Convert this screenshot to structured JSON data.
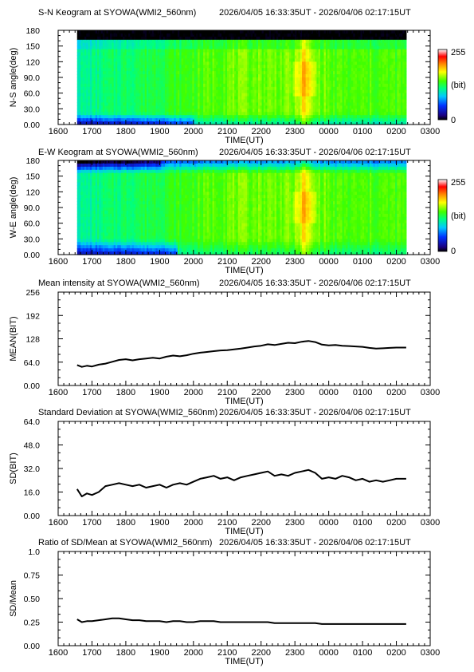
{
  "page": {
    "background": "#ffffff"
  },
  "chart_data": [
    {
      "type": "heatmap",
      "title": "S-N Keogram at SYOWA(WMI2_560nm)",
      "time_range": "2026/04/05 16:33:35UT - 2026/04/06 02:17:15UT",
      "xlabel": "TIME(UT)",
      "ylabel": "N-S angle(deg)",
      "x_ticks": [
        "1600",
        "1700",
        "1800",
        "1900",
        "2000",
        "2100",
        "2200",
        "2300",
        "0000",
        "0100",
        "0200",
        "0300"
      ],
      "y_ticks": [
        "0.00",
        "30.0",
        "60.0",
        "90.0",
        "120",
        "150",
        "180"
      ],
      "xlim_hours": [
        16.0,
        27.0
      ],
      "data_x_range_hours": [
        16.56,
        26.29
      ],
      "ylim": [
        0,
        180
      ],
      "colorbar": {
        "min_label": "0",
        "max_label": "255",
        "unit_label": "(bit)"
      },
      "description_profile": {
        "x_hours": [
          16.56,
          17.0,
          17.5,
          18.0,
          18.5,
          19.0,
          19.5,
          20.0,
          20.5,
          21.0,
          21.5,
          22.0,
          22.5,
          23.0,
          23.3,
          23.5,
          24.0,
          24.5,
          25.0,
          25.5,
          26.0,
          26.29
        ],
        "mean_level": [
          60,
          70,
          80,
          88,
          95,
          100,
          105,
          115,
          122,
          128,
          130,
          135,
          140,
          145,
          160,
          140,
          130,
          130,
          128,
          125,
          126,
          126
        ]
      }
    },
    {
      "type": "heatmap",
      "title": "E-W Keogram at SYOWA(WMI2_560nm)",
      "time_range": "2026/04/05 16:33:35UT - 2026/04/06 02:17:15UT",
      "xlabel": "TIME(UT)",
      "ylabel": "W-E angle(deg)",
      "x_ticks": [
        "1600",
        "1700",
        "1800",
        "1900",
        "2000",
        "2100",
        "2200",
        "2300",
        "0000",
        "0100",
        "0200",
        "0300"
      ],
      "y_ticks": [
        "0.00",
        "30.0",
        "60.0",
        "90.0",
        "120",
        "150",
        "180"
      ],
      "xlim_hours": [
        16.0,
        27.0
      ],
      "data_x_range_hours": [
        16.56,
        26.29
      ],
      "ylim": [
        0,
        180
      ],
      "colorbar": {
        "min_label": "0",
        "max_label": "255",
        "unit_label": "(bit)"
      }
    },
    {
      "type": "line",
      "title": "Mean intensity at SYOWA(WMI2_560nm)",
      "time_range": "2026/04/05 16:33:35UT - 2026/04/06 02:17:15UT",
      "xlabel": "TIME(UT)",
      "ylabel": "MEAN(BIT)",
      "x_ticks": [
        "1600",
        "1700",
        "1800",
        "1900",
        "2000",
        "2100",
        "2200",
        "2300",
        "0000",
        "0100",
        "0200",
        "0300"
      ],
      "y_ticks": [
        "0.00",
        "64.0",
        "128",
        "192",
        "256"
      ],
      "xlim_hours": [
        16.0,
        27.0
      ],
      "ylim": [
        0,
        256
      ],
      "series": [
        {
          "x_hours": [
            16.56,
            16.7,
            16.85,
            17.0,
            17.2,
            17.4,
            17.6,
            17.8,
            18.0,
            18.2,
            18.4,
            18.6,
            18.8,
            19.0,
            19.2,
            19.4,
            19.6,
            19.8,
            20.0,
            20.2,
            20.4,
            20.6,
            20.8,
            21.0,
            21.2,
            21.4,
            21.6,
            21.8,
            22.0,
            22.2,
            22.4,
            22.6,
            22.8,
            23.0,
            23.2,
            23.4,
            23.6,
            23.8,
            24.0,
            24.2,
            24.4,
            24.6,
            24.8,
            25.0,
            25.2,
            25.4,
            25.6,
            25.8,
            26.0,
            26.29
          ],
          "values": [
            56,
            51,
            54,
            52,
            57,
            60,
            65,
            70,
            72,
            69,
            72,
            74,
            76,
            74,
            79,
            82,
            80,
            83,
            87,
            90,
            92,
            94,
            96,
            97,
            99,
            101,
            104,
            107,
            109,
            113,
            111,
            114,
            117,
            116,
            120,
            122,
            119,
            112,
            110,
            111,
            109,
            108,
            107,
            106,
            103,
            101,
            102,
            103,
            104,
            104
          ]
        }
      ]
    },
    {
      "type": "line",
      "title": "Standard Deviation at SYOWA(WMI2_560nm)",
      "time_range": "2026/04/05 16:33:35UT - 2026/04/06 02:17:15UT",
      "xlabel": "TIME(UT)",
      "ylabel": "SD(BIT)",
      "x_ticks": [
        "1600",
        "1700",
        "1800",
        "1900",
        "2000",
        "2100",
        "2200",
        "2300",
        "0000",
        "0100",
        "0200",
        "0300"
      ],
      "y_ticks": [
        "0.00",
        "16.0",
        "32.0",
        "48.0",
        "64.0"
      ],
      "xlim_hours": [
        16.0,
        27.0
      ],
      "ylim": [
        0,
        64
      ],
      "series": [
        {
          "x_hours": [
            16.56,
            16.7,
            16.85,
            17.0,
            17.2,
            17.4,
            17.6,
            17.8,
            18.0,
            18.2,
            18.4,
            18.6,
            18.8,
            19.0,
            19.2,
            19.4,
            19.6,
            19.8,
            20.0,
            20.2,
            20.4,
            20.6,
            20.8,
            21.0,
            21.2,
            21.4,
            21.6,
            21.8,
            22.0,
            22.2,
            22.4,
            22.6,
            22.8,
            23.0,
            23.2,
            23.4,
            23.6,
            23.8,
            24.0,
            24.2,
            24.4,
            24.6,
            24.8,
            25.0,
            25.2,
            25.4,
            25.6,
            25.8,
            26.0,
            26.29
          ],
          "values": [
            18,
            13,
            15,
            14,
            16,
            20,
            21,
            22,
            21,
            20,
            21,
            19,
            20,
            21,
            19,
            21,
            22,
            21,
            23,
            25,
            26,
            27,
            25,
            26,
            24,
            26,
            27,
            28,
            29,
            30,
            27,
            28,
            27,
            29,
            30,
            31,
            29,
            25,
            26,
            25,
            27,
            26,
            24,
            25,
            23,
            24,
            23,
            24,
            25,
            25
          ]
        }
      ]
    },
    {
      "type": "line",
      "title": "Ratio of SD/Mean at SYOWA(WMI2_560nm)",
      "time_range": "2026/04/05 16:33:35UT - 2026/04/06 02:17:15UT",
      "xlabel": "TIME(UT)",
      "ylabel": "SD/Mean",
      "x_ticks": [
        "1600",
        "1700",
        "1800",
        "1900",
        "2000",
        "2100",
        "2200",
        "2300",
        "0000",
        "0100",
        "0200",
        "0300"
      ],
      "y_ticks": [
        "0.00",
        "0.25",
        "0.50",
        "0.75",
        "1.0"
      ],
      "xlim_hours": [
        16.0,
        27.0
      ],
      "ylim": [
        0,
        1.0
      ],
      "series": [
        {
          "x_hours": [
            16.56,
            16.7,
            16.85,
            17.0,
            17.2,
            17.4,
            17.6,
            17.8,
            18.0,
            18.2,
            18.4,
            18.6,
            18.8,
            19.0,
            19.2,
            19.4,
            19.6,
            19.8,
            20.0,
            20.2,
            20.4,
            20.6,
            20.8,
            21.0,
            21.2,
            21.4,
            21.6,
            21.8,
            22.0,
            22.2,
            22.4,
            22.6,
            22.8,
            23.0,
            23.2,
            23.4,
            23.6,
            23.8,
            24.0,
            24.2,
            24.4,
            24.6,
            24.8,
            25.0,
            25.2,
            25.4,
            25.6,
            25.8,
            26.0,
            26.29
          ],
          "values": [
            0.28,
            0.25,
            0.26,
            0.26,
            0.27,
            0.28,
            0.29,
            0.29,
            0.28,
            0.27,
            0.27,
            0.26,
            0.26,
            0.26,
            0.25,
            0.26,
            0.26,
            0.25,
            0.25,
            0.26,
            0.26,
            0.26,
            0.25,
            0.25,
            0.25,
            0.25,
            0.25,
            0.25,
            0.25,
            0.25,
            0.24,
            0.24,
            0.24,
            0.24,
            0.24,
            0.24,
            0.24,
            0.23,
            0.23,
            0.23,
            0.23,
            0.23,
            0.23,
            0.23,
            0.23,
            0.23,
            0.23,
            0.23,
            0.23,
            0.23
          ]
        }
      ]
    }
  ]
}
